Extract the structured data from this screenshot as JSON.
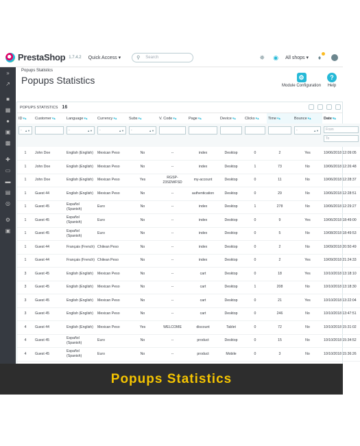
{
  "topbar": {
    "logo_text": "PrestaShop",
    "version": "1.7.4.2",
    "quick_access": "Quick Access ▾",
    "search_placeholder": "Search",
    "shops": "All shops ▾"
  },
  "header": {
    "breadcrumb": "Popups Statistics",
    "title": "Popups Statistics",
    "module_config_label": "Module Configuration",
    "help_label": "Help"
  },
  "panel": {
    "title": "POPUPS STATISTICS",
    "count": "16"
  },
  "columns": [
    "ID",
    "Customer",
    "Language",
    "Currency",
    "Subs",
    "V. Code",
    "Page",
    "Device",
    "Clicks",
    "Time",
    "Bounce",
    "Date"
  ],
  "filters": {
    "select_placeholder": "-",
    "date_from": "From",
    "date_to": "To"
  },
  "rows": [
    [
      "1",
      "John Doe",
      "English (English)",
      "Mexican Peso",
      "No",
      "--",
      "index",
      "Desktop",
      "0",
      "2",
      "Yes",
      "10/06/2018 12:09:05"
    ],
    [
      "1",
      "John Doe",
      "English (English)",
      "Mexican Peso",
      "No",
      "--",
      "index",
      "Desktop",
      "1",
      "73",
      "No",
      "10/06/2018 12:26:48"
    ],
    [
      "1",
      "John Doe",
      "English (English)",
      "Mexican Peso",
      "Yes",
      "RGSP-23SDWFSD",
      "my-account",
      "Desktop",
      "0",
      "11",
      "No",
      "10/06/2018 12:28:37"
    ],
    [
      "1",
      "Guest 44",
      "English (English)",
      "Mexican Peso",
      "No",
      "--",
      "authentication",
      "Desktop",
      "0",
      "29",
      "No",
      "10/06/2018 12:28:51"
    ],
    [
      "1",
      "Guest 45",
      "Español (Spanish)",
      "Euro",
      "No",
      "--",
      "index",
      "Desktop",
      "1",
      "278",
      "No",
      "10/06/2018 12:29:27"
    ],
    [
      "1",
      "Guest 45",
      "Español (Spanish)",
      "Euro",
      "No",
      "--",
      "index",
      "Desktop",
      "0",
      "9",
      "Yes",
      "10/06/2018 18:49:00"
    ],
    [
      "1",
      "Guest 45",
      "Español (Spanish)",
      "Euro",
      "No",
      "--",
      "index",
      "Desktop",
      "0",
      "5",
      "No",
      "10/08/2018 18:49:53"
    ],
    [
      "1",
      "Guest 44",
      "Français (French)",
      "Chilean Peso",
      "No",
      "--",
      "index",
      "Desktop",
      "0",
      "2",
      "No",
      "10/09/2018 20:50:49"
    ],
    [
      "1",
      "Guest 44",
      "Français (French)",
      "Chilean Peso",
      "No",
      "--",
      "index",
      "Desktop",
      "0",
      "2",
      "Yes",
      "10/09/2018 21:24:33"
    ],
    [
      "3",
      "Guest 45",
      "English (English)",
      "Mexican Peso",
      "No",
      "--",
      "cart",
      "Desktop",
      "0",
      "18",
      "Yes",
      "10/10/2018 13:18:10"
    ],
    [
      "3",
      "Guest 45",
      "English (English)",
      "Mexican Peso",
      "No",
      "--",
      "cart",
      "Desktop",
      "1",
      "208",
      "No",
      "10/10/2018 13:18:30"
    ],
    [
      "3",
      "Guest 45",
      "English (English)",
      "Mexican Peso",
      "No",
      "--",
      "cart",
      "Desktop",
      "0",
      "21",
      "Yes",
      "10/10/2018 13:22:04"
    ],
    [
      "3",
      "Guest 45",
      "English (English)",
      "Mexican Peso",
      "No",
      "--",
      "cart",
      "Desktop",
      "0",
      "246",
      "No",
      "10/10/2018 13:47:51"
    ],
    [
      "4",
      "Guest 44",
      "English (English)",
      "Mexican Peso",
      "Yes",
      "WELCOME",
      "discount",
      "Tablet",
      "0",
      "72",
      "No",
      "10/10/2018 15:31:02"
    ],
    [
      "4",
      "Guest 45",
      "Español (Spanish)",
      "Euro",
      "No",
      "--",
      "product",
      "Desktop",
      "0",
      "15",
      "No",
      "10/10/2018 15:34:52"
    ],
    [
      "4",
      "Guest 45",
      "Español (Spanish)",
      "Euro",
      "No",
      "--",
      "product",
      "Mobile",
      "0",
      "3",
      "No",
      "10/10/2018 15:36:26"
    ]
  ],
  "banner": "Popups Statistics",
  "colors": {
    "accent": "#25b9d7",
    "sidebar": "#363a41",
    "banner_bg": "#2d2d2d",
    "banner_text": "#f5c400"
  },
  "icons": [
    "notifications-icon",
    "store-icon",
    "avatar-icon",
    "gear-icon",
    "help-icon"
  ]
}
